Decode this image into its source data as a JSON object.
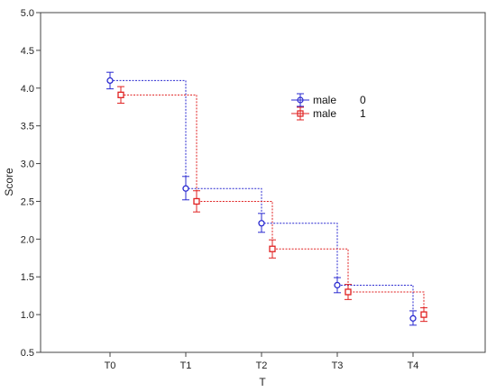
{
  "chart_data": {
    "type": "line",
    "xlabel": "T",
    "ylabel": "Score",
    "categories": [
      "T0",
      "T1",
      "T2",
      "T3",
      "T4"
    ],
    "ylim": [
      0.5,
      5.0
    ],
    "yticks": [
      0.5,
      1.0,
      1.5,
      2.0,
      2.5,
      3.0,
      3.5,
      4.0,
      4.5,
      5.0
    ],
    "ytick_labels": [
      "0.5",
      "1.0",
      "1.5",
      "2.0",
      "2.5",
      "3.0",
      "3.5",
      "4.0",
      "4.5",
      "5.0"
    ],
    "grid": false,
    "legend": {
      "placement": "top-right",
      "group_label": "male"
    },
    "series": [
      {
        "name": "0",
        "color": "#2a2ad0",
        "marker": "circle",
        "line_style": "dotted-step",
        "values": [
          4.1,
          2.67,
          2.21,
          1.39,
          0.95
        ],
        "err_lower": [
          3.99,
          2.52,
          2.09,
          1.29,
          0.86
        ],
        "err_upper": [
          4.21,
          2.83,
          2.34,
          1.49,
          1.05
        ]
      },
      {
        "name": "1",
        "color": "#e02020",
        "marker": "square",
        "line_style": "dotted-step",
        "values": [
          3.91,
          2.5,
          1.87,
          1.3,
          1.0
        ],
        "err_lower": [
          3.8,
          2.36,
          1.75,
          1.2,
          0.91
        ],
        "err_upper": [
          4.02,
          2.64,
          1.99,
          1.4,
          1.09
        ]
      }
    ]
  }
}
